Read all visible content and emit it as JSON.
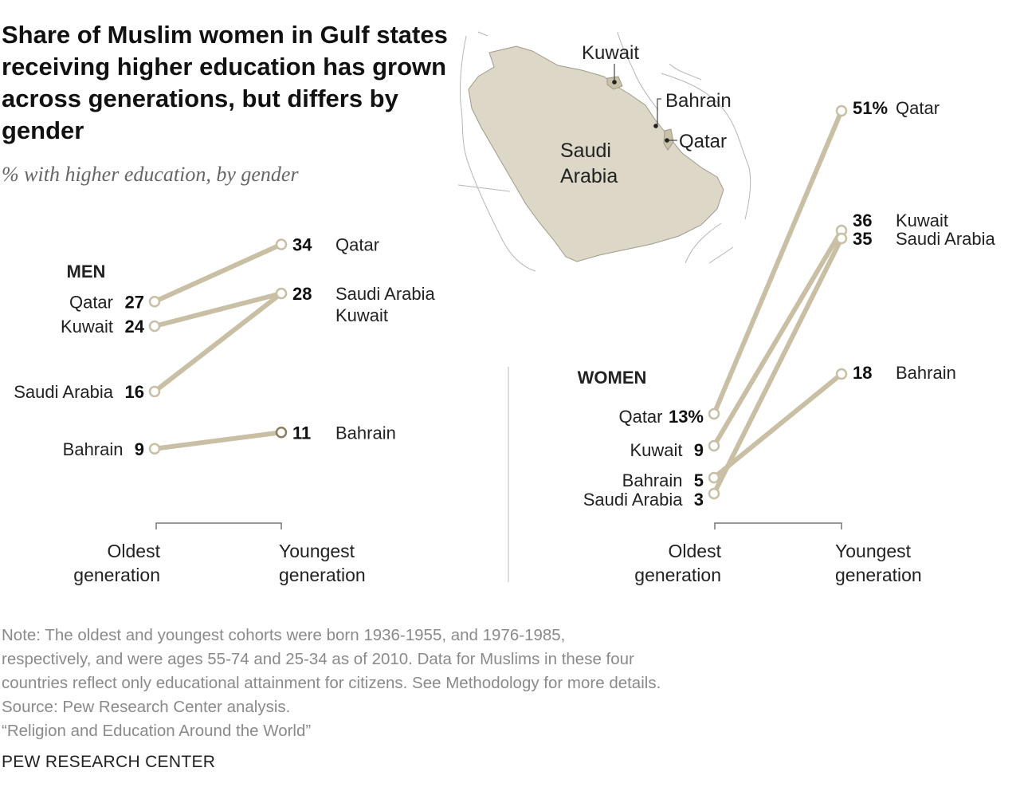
{
  "title": "Share of Muslim women in Gulf states receiving higher education has grown across generations, but differs by gender",
  "subtitle": "% with higher education, by gender",
  "map": {
    "labels": {
      "kuwait": "Kuwait",
      "bahrain": "Bahrain",
      "qatar": "Qatar",
      "saudi_line1": "Saudi",
      "saudi_line2": "Arabia"
    },
    "fill_color": "#dcd7c6"
  },
  "colors": {
    "line": "#c8bfa5",
    "marker_fill": "#ffffff",
    "marker_highlight": "#8a7f60",
    "axis": "#777777"
  },
  "axis_labels": {
    "oldest_line1": "Oldest",
    "oldest_line2": "generation",
    "youngest_line1": "Youngest",
    "youngest_line2": "generation"
  },
  "chart_data": [
    {
      "type": "line",
      "title": "MEN",
      "x": [
        "Oldest generation",
        "Youngest generation"
      ],
      "series": [
        {
          "name": "Qatar",
          "values": [
            27,
            34
          ],
          "label_oldest": "27",
          "label_youngest": "34",
          "youngest_names": "Qatar"
        },
        {
          "name": "Kuwait",
          "values": [
            24,
            28
          ],
          "label_oldest": "24",
          "label_youngest": "",
          "youngest_names": ""
        },
        {
          "name": "Saudi Arabia",
          "values": [
            16,
            28
          ],
          "label_oldest": "16",
          "label_youngest": "28",
          "youngest_names": "Saudi Arabia\nKuwait"
        },
        {
          "name": "Bahrain",
          "values": [
            9,
            11
          ],
          "label_oldest": "9",
          "label_youngest": "11",
          "youngest_names": "Bahrain"
        }
      ]
    },
    {
      "type": "line",
      "title": "WOMEN",
      "x": [
        "Oldest generation",
        "Youngest generation"
      ],
      "series": [
        {
          "name": "Qatar",
          "values": [
            13,
            51
          ],
          "label_oldest": "13%",
          "label_youngest": "51%",
          "youngest_names": "Qatar"
        },
        {
          "name": "Kuwait",
          "values": [
            9,
            36
          ],
          "label_oldest": "9",
          "label_youngest": "36",
          "youngest_names": "Kuwait"
        },
        {
          "name": "Bahrain",
          "values": [
            5,
            18
          ],
          "label_oldest": "5",
          "label_youngest": "18",
          "youngest_names": "Bahrain"
        },
        {
          "name": "Saudi Arabia",
          "values": [
            3,
            35
          ],
          "label_oldest": "3",
          "label_youngest": "35",
          "youngest_names": "Saudi Arabia"
        }
      ]
    }
  ],
  "footer": {
    "note_lines": [
      "Note: The oldest and youngest cohorts were born 1936-1955, and 1976-1985,",
      "respectively, and were ages 55-74 and 25-34 as of 2010. Data for Muslims in these four",
      "countries reflect only educational attainment for citizens. See Methodology for more details."
    ],
    "source": "Source: Pew Research Center analysis.",
    "report": "“Religion and Education Around the World”",
    "brand": "PEW RESEARCH CENTER"
  }
}
